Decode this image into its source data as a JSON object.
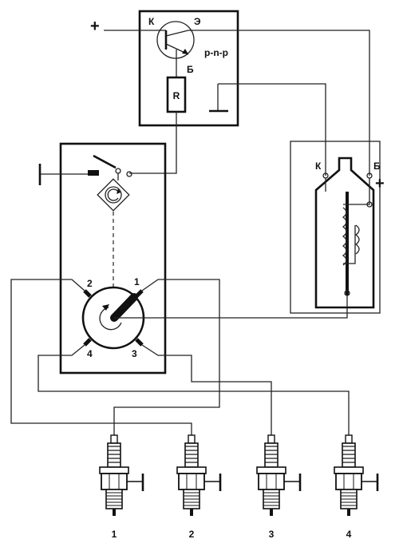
{
  "transistor_module": {
    "plus_sign": "+",
    "collector_label": "К",
    "emitter_label": "Э",
    "base_label": "Б",
    "type_label": "p-n-p",
    "resistor_label": "R"
  },
  "distributor": {
    "terminal_1": "1",
    "terminal_2": "2",
    "terminal_3": "3",
    "terminal_4": "4"
  },
  "ignition_coil": {
    "k_label": "К",
    "b_label": "Б",
    "plus_sign": "+"
  },
  "spark_plugs": [
    "1",
    "2",
    "3",
    "4"
  ]
}
